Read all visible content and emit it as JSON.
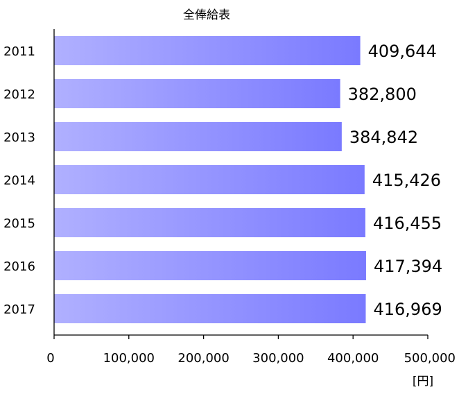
{
  "chart_data": {
    "type": "bar",
    "orientation": "horizontal",
    "title": "全俸給表",
    "unit_label": "[円]",
    "categories": [
      "2011",
      "2012",
      "2013",
      "2014",
      "2015",
      "2016",
      "2017"
    ],
    "values": [
      409644,
      382800,
      384842,
      415426,
      416455,
      417394,
      416969
    ],
    "value_labels": [
      "409,644",
      "382,800",
      "384,842",
      "415,426",
      "416,455",
      "417,394",
      "416,969"
    ],
    "xlim": [
      0,
      500000
    ],
    "x_ticks": [
      0,
      100000,
      200000,
      300000,
      400000,
      500000
    ],
    "x_tick_labels": [
      "0",
      "100,000",
      "200,000",
      "300,000",
      "400,000",
      "500,000"
    ],
    "grid": false,
    "legend": "none",
    "colors": {
      "bar_light": "#b0b0ff",
      "bar_dark": "#7a7aff",
      "axis": "#000000"
    }
  }
}
